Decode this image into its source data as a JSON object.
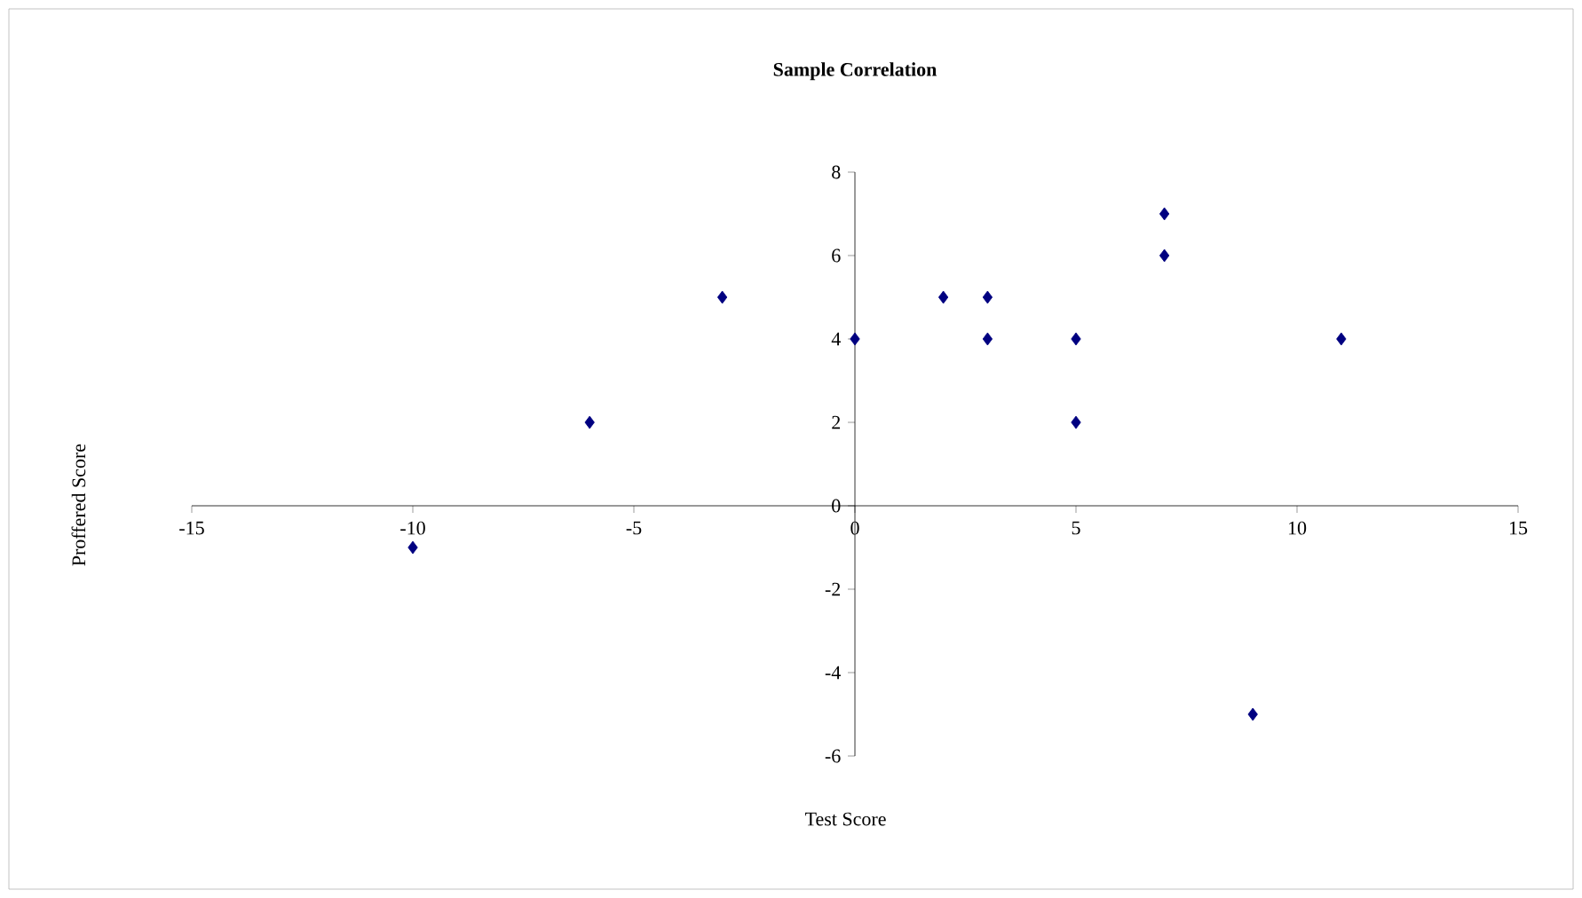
{
  "chart_data": {
    "type": "scatter",
    "title": "Sample Correlation",
    "xlabel": "Test Score",
    "ylabel": "Proffered Score",
    "x": [
      -10,
      -6,
      -3,
      0,
      2,
      3,
      3,
      5,
      5,
      7,
      7,
      9,
      11
    ],
    "values": [
      -1,
      2,
      5,
      4,
      5,
      5,
      4,
      4,
      2,
      7,
      6,
      -5,
      4
    ],
    "color": "#000080",
    "marker": "diamond",
    "xlim": [
      -15,
      15
    ],
    "xticks": [
      -15,
      -10,
      -5,
      0,
      5,
      10,
      15
    ],
    "ylim": [
      -6,
      8
    ],
    "yticks": [
      -6,
      -4,
      -2,
      0,
      2,
      4,
      6,
      8
    ],
    "grid": false
  }
}
